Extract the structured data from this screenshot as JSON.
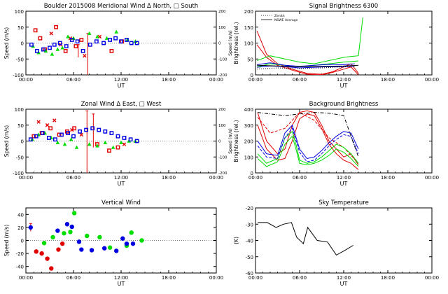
{
  "figure": {
    "panels": [
      {
        "title": "Boulder   2015008     Meridional Wind   Δ North, □ South",
        "ylabel": "Speed (m/s)",
        "y2label": "Speed (m/s)"
      },
      {
        "title": "Signal Brightness       6300",
        "ylabel": "Brightness (rel.)",
        "y2label": ""
      },
      {
        "title": "Zonal Wind      Δ East, □ West",
        "ylabel": "Speed (m/s)",
        "y2label": "Speed (m/s)"
      },
      {
        "title": "Background Brightness",
        "ylabel": "Brightness (rel.)",
        "y2label": ""
      },
      {
        "title": "Vertical Wind",
        "ylabel": "Speed (m/s)",
        "y2label": ""
      },
      {
        "title": "Sky Temperature",
        "ylabel": "(K)",
        "y2label": ""
      }
    ],
    "xlabel": "UT",
    "xticks": [
      "00:00",
      "06:00",
      "12:00",
      "18:00",
      "00:00"
    ],
    "colors": {
      "red": "#e00000",
      "green": "#00dd00",
      "blue": "#0000e0",
      "black": "#000000"
    }
  },
  "chart_data": [
    {
      "type": "scatter",
      "title": "Boulder   2015008     Meridional Wind   Δ North, □ South",
      "xlabel": "UT",
      "ylabel": "Speed (m/s)",
      "y2label": "Speed (m/s)",
      "xlim": [
        0,
        24
      ],
      "ylim": [
        -100,
        100
      ],
      "y2lim": [
        -200,
        200
      ],
      "yticks": [
        -100,
        -50,
        0,
        50,
        100
      ],
      "y2ticks": [
        -200,
        -100,
        0,
        100,
        200
      ],
      "series": [
        {
          "color": "red",
          "marker": "square",
          "x": [
            1.2,
            1.8,
            2.4,
            3.8,
            5.0,
            6.3,
            7.0,
            10.8,
            12.1
          ],
          "y": [
            40,
            15,
            -20,
            50,
            -25,
            -10,
            10,
            -25,
            5
          ]
        },
        {
          "color": "red",
          "marker": "x",
          "x": [
            3.2,
            4.4,
            5.6,
            7.4,
            9.3
          ],
          "y": [
            30,
            -5,
            15,
            -40,
            20
          ]
        },
        {
          "color": "green",
          "marker": "triangle",
          "x": [
            0.9,
            1.6,
            2.5,
            3.3,
            4.0,
            4.6,
            5.3,
            6.0,
            8.0,
            9.0,
            10.2,
            11.4,
            12.8,
            13.8
          ],
          "y": [
            -10,
            -30,
            -25,
            -35,
            -20,
            -15,
            20,
            15,
            30,
            20,
            15,
            35,
            10,
            5
          ]
        },
        {
          "color": "blue",
          "marker": "square",
          "x": [
            0.7,
            1.4,
            2.2,
            3.0,
            3.6,
            4.3,
            5.1,
            5.8,
            6.5,
            7.2,
            8.1,
            8.9,
            9.8,
            10.6,
            11.3,
            12.0,
            12.7,
            13.3,
            14.0
          ],
          "y": [
            -5,
            -25,
            -20,
            -15,
            -5,
            0,
            -10,
            10,
            5,
            -25,
            -5,
            5,
            0,
            10,
            15,
            5,
            10,
            0,
            0
          ]
        }
      ],
      "error_bars": [
        {
          "x": 7.8,
          "y": -20,
          "low": -100,
          "high": 30
        },
        {
          "x": 6.6,
          "y": -25,
          "low": -45,
          "high": -5
        }
      ]
    },
    {
      "type": "line",
      "title": "Signal Brightness       6300",
      "xlabel": "UT",
      "ylabel": "Brightness (rel.)",
      "xlim": [
        0,
        24
      ],
      "ylim": [
        0,
        200
      ],
      "yticks": [
        0,
        50,
        100,
        150,
        200
      ],
      "legend": [
        "Zenith",
        "NSWE Average"
      ],
      "legend_loc": "top-left",
      "series": [
        {
          "color": "red",
          "style": "solid",
          "x": [
            0.2,
            1.5,
            3.0,
            5.0,
            7.0,
            9.0,
            10.5,
            12.0,
            13.0,
            14.0
          ],
          "y": [
            138,
            65,
            35,
            18,
            5,
            2,
            10,
            25,
            35,
            5
          ]
        },
        {
          "color": "red",
          "style": "solid",
          "x": [
            0.2,
            1.5,
            3.0,
            5.0,
            7.0,
            9.0,
            10.5,
            12.0,
            13.0,
            14.0
          ],
          "y": [
            95,
            55,
            30,
            15,
            2,
            0,
            8,
            18,
            25,
            0
          ]
        },
        {
          "color": "green",
          "style": "solid",
          "x": [
            0.2,
            2.0,
            4.0,
            6.0,
            8.0,
            10.0,
            12.0,
            13.0,
            14.0,
            14.6
          ],
          "y": [
            45,
            60,
            50,
            40,
            35,
            45,
            55,
            58,
            60,
            180
          ]
        },
        {
          "color": "green",
          "style": "solid",
          "x": [
            0.2,
            2.0,
            4.0,
            6.0,
            8.0,
            10.0,
            12.0,
            13.0,
            14.0
          ],
          "y": [
            25,
            35,
            30,
            25,
            30,
            35,
            40,
            42,
            44
          ]
        },
        {
          "color": "blue",
          "style": "solid",
          "x": [
            0.2,
            2.0,
            4.0,
            6.0,
            8.0,
            10.0,
            12.0,
            13.5
          ],
          "y": [
            32,
            38,
            30,
            27,
            30,
            33,
            32,
            35
          ]
        },
        {
          "color": "blue",
          "style": "solid",
          "x": [
            0.2,
            2.0,
            4.0,
            6.0,
            8.0,
            10.0,
            12.0,
            13.5
          ],
          "y": [
            24,
            28,
            26,
            22,
            24,
            26,
            25,
            28
          ]
        },
        {
          "color": "black",
          "style": "dotted",
          "x": [
            0.2,
            3.0,
            6.0,
            9.0,
            12.0,
            14.0
          ],
          "y": [
            18,
            22,
            20,
            22,
            25,
            30
          ]
        },
        {
          "color": "black",
          "style": "solid",
          "x": [
            0.2,
            3.0,
            6.0,
            9.0,
            12.0,
            14.0
          ],
          "y": [
            30,
            28,
            26,
            27,
            28,
            30
          ]
        }
      ]
    },
    {
      "type": "scatter",
      "title": "Zonal Wind      Δ East, □ West",
      "xlabel": "UT",
      "ylabel": "Speed (m/s)",
      "y2label": "Speed (m/s)",
      "xlim": [
        0,
        24
      ],
      "ylim": [
        -100,
        100
      ],
      "y2lim": [
        -200,
        200
      ],
      "yticks": [
        -100,
        -50,
        0,
        50,
        100
      ],
      "y2ticks": [
        -200,
        -100,
        0,
        100,
        200
      ],
      "series": [
        {
          "color": "red",
          "marker": "square",
          "x": [
            1.0,
            2.0,
            3.1,
            4.2,
            5.2,
            6.1,
            9.0,
            10.5,
            11.6
          ],
          "y": [
            15,
            25,
            40,
            20,
            30,
            40,
            -10,
            -30,
            -20
          ]
        },
        {
          "color": "red",
          "marker": "x",
          "x": [
            1.6,
            2.7,
            3.6,
            5.8,
            7.0,
            12.4
          ],
          "y": [
            60,
            50,
            65,
            35,
            20,
            -10
          ]
        },
        {
          "color": "green",
          "marker": "triangle",
          "x": [
            0.8,
            1.6,
            2.4,
            3.2,
            4.0,
            4.9,
            5.7,
            6.4,
            8.0,
            9.0,
            10.0,
            11.0,
            12.0,
            13.0,
            13.8
          ],
          "y": [
            5,
            20,
            25,
            10,
            -5,
            -10,
            5,
            -20,
            -10,
            -15,
            -5,
            -20,
            -5,
            0,
            0
          ]
        },
        {
          "color": "blue",
          "marker": "square",
          "x": [
            0.6,
            1.3,
            2.1,
            2.9,
            3.7,
            4.5,
            5.3,
            6.0,
            6.8,
            7.6,
            8.4,
            9.2,
            10.0,
            10.8,
            11.6,
            12.4,
            13.2,
            14.0
          ],
          "y": [
            5,
            15,
            25,
            10,
            5,
            20,
            25,
            15,
            30,
            35,
            40,
            35,
            30,
            25,
            15,
            10,
            5,
            0
          ]
        }
      ],
      "error_bars": [
        {
          "x": 7.7,
          "y": 0,
          "low": -100,
          "high": 95
        },
        {
          "x": 8.5,
          "y": 20,
          "low": -20,
          "high": 85
        }
      ]
    },
    {
      "type": "line",
      "title": "Background Brightness",
      "xlabel": "UT",
      "ylabel": "Brightness (rel.)",
      "xlim": [
        0,
        24
      ],
      "ylim": [
        0,
        400
      ],
      "yticks": [
        0,
        100,
        200,
        300,
        400
      ],
      "series": [
        {
          "color": "red",
          "style": "solid",
          "x": [
            0.3,
            1.5,
            3.0,
            4.0,
            5.0,
            6.0,
            7.0,
            8.0,
            9.0,
            10.0,
            11.0,
            12.0,
            13.0,
            14.0
          ],
          "y": [
            380,
            200,
            120,
            150,
            300,
            380,
            390,
            380,
            300,
            200,
            150,
            100,
            120,
            50
          ]
        },
        {
          "color": "red",
          "style": "solid",
          "x": [
            0.3,
            1.5,
            3.0,
            4.0,
            5.0,
            6.0,
            7.0,
            8.0,
            9.0,
            10.0,
            11.0,
            12.0,
            13.0,
            14.0
          ],
          "y": [
            300,
            150,
            80,
            90,
            200,
            340,
            370,
            360,
            280,
            180,
            120,
            80,
            60,
            20
          ]
        },
        {
          "color": "red",
          "style": "dashed",
          "x": [
            0.3,
            2.0,
            4.0,
            6.0,
            8.0,
            10.0,
            12.0,
            14.0
          ],
          "y": [
            350,
            250,
            280,
            380,
            330,
            220,
            160,
            60
          ]
        },
        {
          "color": "green",
          "style": "solid",
          "x": [
            0.3,
            1.5,
            3.0,
            4.0,
            5.0,
            5.5,
            6.0,
            7.0,
            8.0,
            9.0,
            10.0,
            11.0,
            12.0,
            13.0,
            14.0
          ],
          "y": [
            120,
            60,
            90,
            220,
            260,
            180,
            80,
            60,
            70,
            100,
            140,
            180,
            160,
            120,
            60
          ]
        },
        {
          "color": "green",
          "style": "solid",
          "x": [
            0.3,
            1.5,
            3.0,
            4.0,
            5.0,
            5.5,
            6.0,
            7.0,
            8.0,
            9.0,
            10.0,
            11.0,
            12.0,
            13.0,
            14.0
          ],
          "y": [
            90,
            40,
            70,
            180,
            230,
            150,
            60,
            50,
            60,
            80,
            110,
            150,
            130,
            90,
            40
          ]
        },
        {
          "color": "blue",
          "style": "solid",
          "x": [
            0.3,
            1.5,
            3.0,
            4.0,
            5.0,
            6.0,
            7.0,
            8.0,
            9.0,
            10.0,
            11.0,
            12.0,
            13.0,
            14.0
          ],
          "y": [
            200,
            120,
            110,
            250,
            300,
            150,
            90,
            100,
            140,
            190,
            230,
            260,
            250,
            150
          ]
        },
        {
          "color": "blue",
          "style": "dashed",
          "x": [
            0.3,
            1.5,
            3.0,
            4.0,
            5.0,
            6.0,
            7.0,
            8.0,
            9.0,
            10.0,
            11.0,
            12.0,
            13.0,
            14.0
          ],
          "y": [
            170,
            100,
            90,
            220,
            280,
            130,
            70,
            80,
            120,
            170,
            210,
            240,
            230,
            120
          ]
        },
        {
          "color": "black",
          "style": "dashdot",
          "x": [
            0.3,
            2.0,
            4.0,
            6.0,
            8.0,
            10.0,
            12.0,
            14.0
          ],
          "y": [
            380,
            370,
            360,
            370,
            380,
            375,
            360,
            100
          ]
        }
      ]
    },
    {
      "type": "scatter",
      "title": "Vertical Wind",
      "xlabel": "UT",
      "ylabel": "Speed (m/s)",
      "xlim": [
        0,
        24
      ],
      "ylim": [
        -50,
        50
      ],
      "yticks": [
        -40,
        -20,
        0,
        20,
        40
      ],
      "series": [
        {
          "color": "red",
          "marker": "circle",
          "x": [
            1.3,
            2.0,
            2.7,
            3.2,
            4.1,
            4.6
          ],
          "y": [
            -17,
            -20,
            -28,
            -43,
            -14,
            -5
          ]
        },
        {
          "color": "green",
          "marker": "circle",
          "x": [
            2.3,
            3.4,
            4.8,
            5.6,
            6.1,
            7.7,
            9.3,
            10.6,
            12.7,
            13.3,
            14.6
          ],
          "y": [
            -4,
            5,
            11,
            13,
            42,
            7,
            5,
            -11,
            -8,
            12,
            0
          ]
        },
        {
          "color": "blue",
          "marker": "circle",
          "x": [
            0.6,
            4.0,
            5.2,
            5.8,
            6.7,
            7.0,
            8.3,
            9.9,
            11.4,
            12.2,
            12.7,
            13.5
          ],
          "y": [
            20,
            15,
            25,
            21,
            -2,
            -14,
            -15,
            -12,
            -16,
            3,
            -5,
            -5
          ]
        }
      ],
      "error_bars": [
        {
          "x": 0.6,
          "y": 20,
          "low": 14,
          "high": 26
        }
      ]
    },
    {
      "type": "line",
      "title": "Sky Temperature",
      "xlabel": "UT",
      "ylabel": "(K)",
      "xlim": [
        0,
        24
      ],
      "ylim": [
        -60,
        -20
      ],
      "yticks": [
        -60,
        -50,
        -40,
        -30,
        -20
      ],
      "series": [
        {
          "color": "black",
          "style": "solid",
          "x": [
            0.3,
            1.6,
            2.8,
            3.8,
            4.9,
            5.6,
            6.5,
            7.1,
            8.4,
            9.8,
            11.0,
            12.2,
            13.3
          ],
          "y": [
            -29,
            -29,
            -32,
            -30,
            -29,
            -38,
            -42,
            -32,
            -40,
            -41,
            -49,
            -46,
            -43
          ]
        }
      ]
    }
  ]
}
